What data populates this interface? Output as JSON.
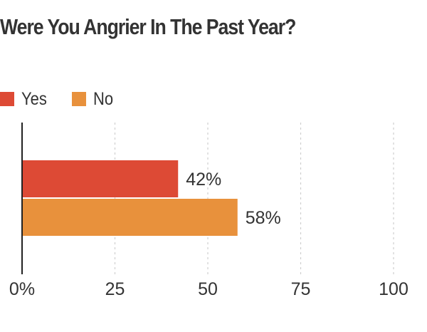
{
  "chart_data": {
    "type": "bar",
    "orientation": "horizontal",
    "title": "Were You Angrier In The Past Year?",
    "series": [
      {
        "name": "Yes",
        "value": 42,
        "label": "42%",
        "color": "#dd4a35"
      },
      {
        "name": "No",
        "value": 58,
        "label": "58%",
        "color": "#e8913c"
      }
    ],
    "xlim": [
      0,
      100
    ],
    "x_ticks": [
      {
        "value": 0,
        "label": "0%"
      },
      {
        "value": 25,
        "label": "25"
      },
      {
        "value": 50,
        "label": "50"
      },
      {
        "value": 75,
        "label": "75"
      },
      {
        "value": 100,
        "label": "100"
      }
    ],
    "grid": true,
    "legend_position": "top-left"
  }
}
